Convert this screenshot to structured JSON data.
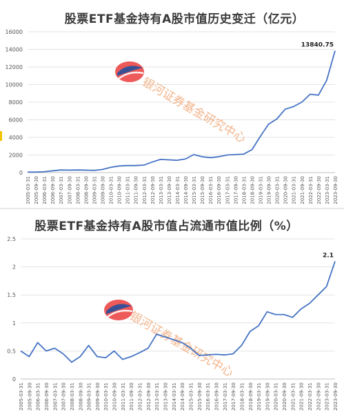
{
  "chart_data": [
    {
      "type": "line",
      "title": "股票ETF基金持有A股市值历史变迁（亿元）",
      "xlabel": "",
      "ylabel": "",
      "ylim": [
        0,
        16000
      ],
      "yticks": [
        0,
        2000,
        4000,
        6000,
        8000,
        10000,
        12000,
        14000,
        16000
      ],
      "grid": "horizontal",
      "legend": "none",
      "line_color": "#4472c4",
      "end_label": "13840.75",
      "x": [
        "2005-03-31",
        "2005-09-30",
        "2006-03-31",
        "2006-09-30",
        "2007-03-31",
        "2007-09-30",
        "2008-03-31",
        "2008-09-30",
        "2009-03-31",
        "2009-09-30",
        "2010-03-31",
        "2010-09-30",
        "2011-03-31",
        "2011-09-30",
        "2012-03-31",
        "2012-09-30",
        "2013-03-31",
        "2013-09-30",
        "2014-03-31",
        "2014-09-30",
        "2015-03-31",
        "2015-09-30",
        "2016-03-31",
        "2016-09-30",
        "2017-03-31",
        "2017-09-30",
        "2018-03-31",
        "2018-09-30",
        "2019-03-31",
        "2019-09-30",
        "2020-03-31",
        "2020-09-30",
        "2021-03-31",
        "2021-09-30",
        "2022-03-31",
        "2022-09-30",
        "2023-03-31",
        "2023-09-30"
      ],
      "values": [
        60,
        60,
        100,
        200,
        300,
        280,
        300,
        280,
        250,
        350,
        600,
        750,
        800,
        800,
        850,
        1200,
        1500,
        1450,
        1400,
        1550,
        2050,
        1800,
        1700,
        1800,
        2000,
        2050,
        2100,
        2600,
        4100,
        5500,
        6100,
        7200,
        7500,
        8000,
        8900,
        8800,
        10500,
        13840.75
      ]
    },
    {
      "type": "line",
      "title": "股票ETF基金持有A股市值占流通市值比例（%）",
      "xlabel": "",
      "ylabel": "",
      "ylim": [
        0,
        2.5
      ],
      "yticks": [
        0,
        0.5,
        1,
        1.5,
        2,
        2.5
      ],
      "grid": "horizontal",
      "legend": "none",
      "line_color": "#4472c4",
      "end_label": "2.1",
      "x": [
        "2005-03-31",
        "2005-09-30",
        "2006-03-31",
        "2006-09-30",
        "2007-03-31",
        "2007-09-30",
        "2008-03-31",
        "2008-09-30",
        "2009-03-31",
        "2009-09-30",
        "2010-03-31",
        "2010-09-30",
        "2011-03-31",
        "2011-09-30",
        "2012-03-31",
        "2012-09-30",
        "2013-03-31",
        "2013-09-30",
        "2014-03-31",
        "2014-09-30",
        "2015-03-31",
        "2015-09-30",
        "2016-03-31",
        "2016-09-30",
        "2017-03-31",
        "2017-09-30",
        "2018-03-31",
        "2018-09-30",
        "2019-03-31",
        "2019-09-30",
        "2020-03-31",
        "2020-09-30",
        "2021-03-31",
        "2021-09-30",
        "2022-03-31",
        "2022-09-30",
        "2023-03-31",
        "2023-09-30"
      ],
      "values": [
        0.5,
        0.4,
        0.65,
        0.5,
        0.55,
        0.45,
        0.3,
        0.4,
        0.6,
        0.4,
        0.38,
        0.5,
        0.35,
        0.4,
        0.47,
        0.55,
        0.8,
        0.75,
        0.7,
        0.65,
        0.55,
        0.42,
        0.43,
        0.44,
        0.43,
        0.45,
        0.6,
        0.85,
        0.95,
        1.2,
        1.15,
        1.15,
        1.1,
        1.25,
        1.35,
        1.5,
        1.65,
        2.1
      ]
    }
  ],
  "watermark": {
    "text": "银河证券基金研究中心",
    "logo_colors": [
      "#e8312f",
      "#1a4fa0"
    ]
  },
  "accent": "#f2c200"
}
